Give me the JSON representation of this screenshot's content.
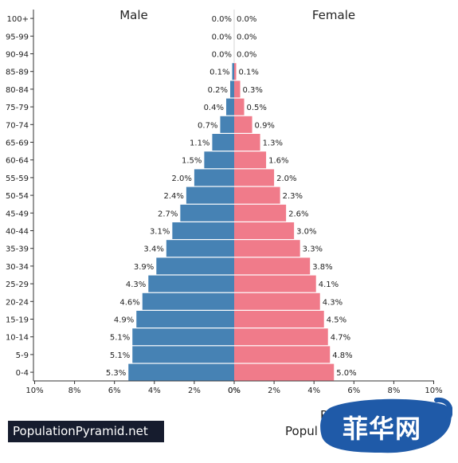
{
  "chart_data": {
    "type": "bar",
    "orientation": "horizontal",
    "layout": "population-pyramid",
    "categories": [
      "100+",
      "95-99",
      "90-94",
      "85-89",
      "80-84",
      "75-79",
      "70-74",
      "65-69",
      "60-64",
      "55-59",
      "50-54",
      "45-49",
      "40-44",
      "35-39",
      "30-34",
      "25-29",
      "20-24",
      "15-19",
      "10-14",
      "5-9",
      "0-4"
    ],
    "series": [
      {
        "name": "Male",
        "color": "#4682b4",
        "values": [
          0.0,
          0.0,
          0.0,
          0.1,
          0.2,
          0.4,
          0.7,
          1.1,
          1.5,
          2.0,
          2.4,
          2.7,
          3.1,
          3.4,
          3.9,
          4.3,
          4.6,
          4.9,
          5.1,
          5.1,
          5.3
        ],
        "labels": [
          "0.0%",
          "0.0%",
          "0.0%",
          "0.1%",
          "0.2%",
          "0.4%",
          "0.7%",
          "1.1%",
          "1.5%",
          "2.0%",
          "2.4%",
          "2.7%",
          "3.1%",
          "3.4%",
          "3.9%",
          "4.3%",
          "4.6%",
          "4.9%",
          "5.1%",
          "5.1%",
          "5.3%"
        ]
      },
      {
        "name": "Female",
        "color": "#f07b8a",
        "values": [
          0.0,
          0.0,
          0.0,
          0.1,
          0.3,
          0.5,
          0.9,
          1.3,
          1.6,
          2.0,
          2.3,
          2.6,
          3.0,
          3.3,
          3.8,
          4.1,
          4.3,
          4.5,
          4.7,
          4.8,
          5.0
        ],
        "labels": [
          "0.0%",
          "0.0%",
          "0.0%",
          "0.1%",
          "0.3%",
          "0.5%",
          "0.9%",
          "1.3%",
          "1.6%",
          "2.0%",
          "2.3%",
          "2.6%",
          "3.0%",
          "3.3%",
          "3.8%",
          "4.1%",
          "4.3%",
          "4.5%",
          "4.7%",
          "4.8%",
          "5.0%"
        ]
      }
    ],
    "xlim": [
      0,
      10
    ],
    "male_ticks": [
      "10%",
      "8%",
      "6%",
      "4%",
      "2%",
      "0%"
    ],
    "female_ticks": [
      "0%",
      "2%",
      "4%",
      "6%",
      "8%",
      "10%"
    ],
    "grid": false,
    "legend": "titles above each half"
  },
  "footer": {
    "brand": "PopulationPyramid.net",
    "title_fragment": "Popul",
    "title_top_fragment": "P"
  },
  "watermark": {
    "text": "菲华网",
    "color": "#1f5aa8"
  }
}
